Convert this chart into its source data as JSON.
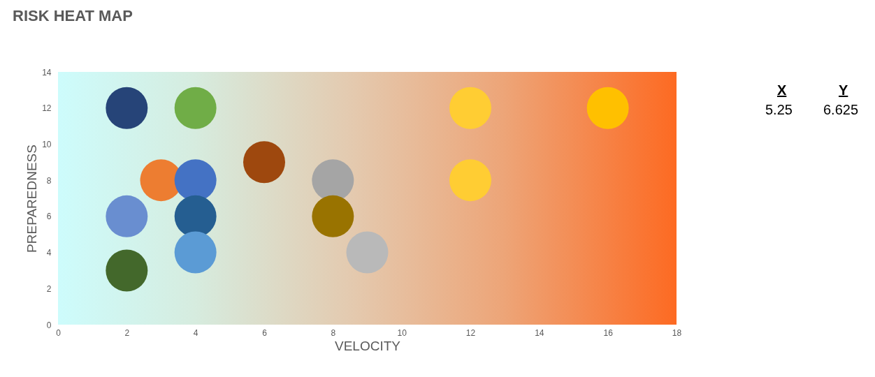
{
  "chart_data": {
    "type": "scatter",
    "title": "RISK HEAT MAP",
    "xlabel": "VELOCITY",
    "ylabel": "PREPAREDNESS",
    "x": [
      2,
      4,
      6,
      3,
      4,
      8,
      2,
      4,
      8,
      4,
      9,
      2,
      12,
      16,
      12
    ],
    "values": [
      12,
      12,
      9,
      8,
      8,
      8,
      6,
      6,
      6,
      4,
      4,
      3,
      12,
      12,
      8
    ],
    "colors": [
      "#264478",
      "#70ad47",
      "#9e480e",
      "#ed7d31",
      "#4472c4",
      "#a5a5a5",
      "#698ed0",
      "#255e91",
      "#997300",
      "#5b9bd5",
      "#b9b9b9",
      "#43682b",
      "#ffcd33",
      "#ffc000",
      "#ffcd33"
    ],
    "marker": "circle",
    "xlim": [
      0,
      18
    ],
    "xticks": [
      0,
      2,
      4,
      6,
      8,
      10,
      12,
      14,
      16,
      18
    ],
    "ylim": [
      0,
      14
    ],
    "yticks": [
      0,
      2,
      4,
      6,
      8,
      10,
      12,
      14
    ],
    "grid": false,
    "legend": false,
    "annotations": [
      "X",
      "Y",
      "5.25",
      "6.625"
    ]
  }
}
